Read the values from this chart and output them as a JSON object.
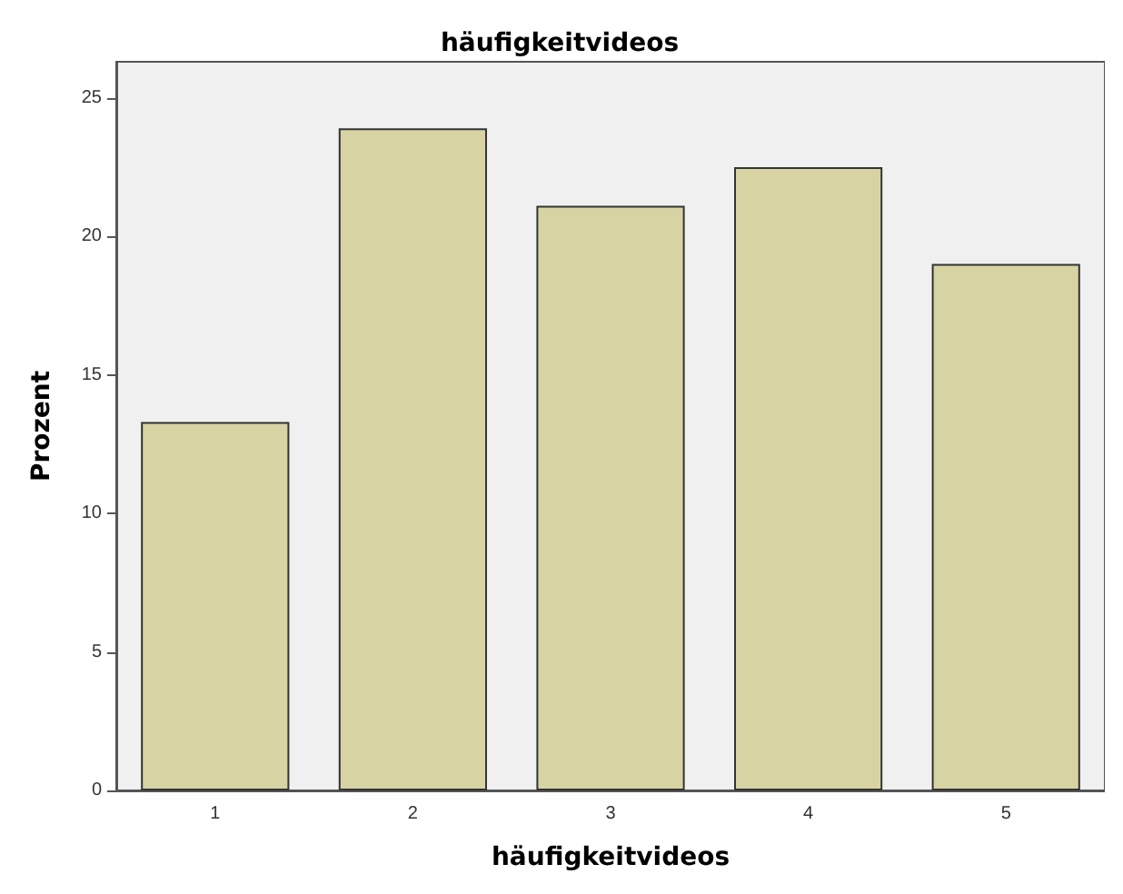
{
  "chart_data": {
    "type": "bar",
    "title": "häufigkeitvideos",
    "xlabel": "häufigkeitvideos",
    "ylabel": "Prozent",
    "categories": [
      "1",
      "2",
      "3",
      "4",
      "5"
    ],
    "values": [
      13.3,
      23.9,
      21.1,
      22.5,
      19.0
    ],
    "color": "#d8d3a3",
    "ylim": [
      0,
      26.3
    ],
    "yticks": [
      0,
      5,
      10,
      15,
      20,
      25
    ],
    "grid": false
  }
}
